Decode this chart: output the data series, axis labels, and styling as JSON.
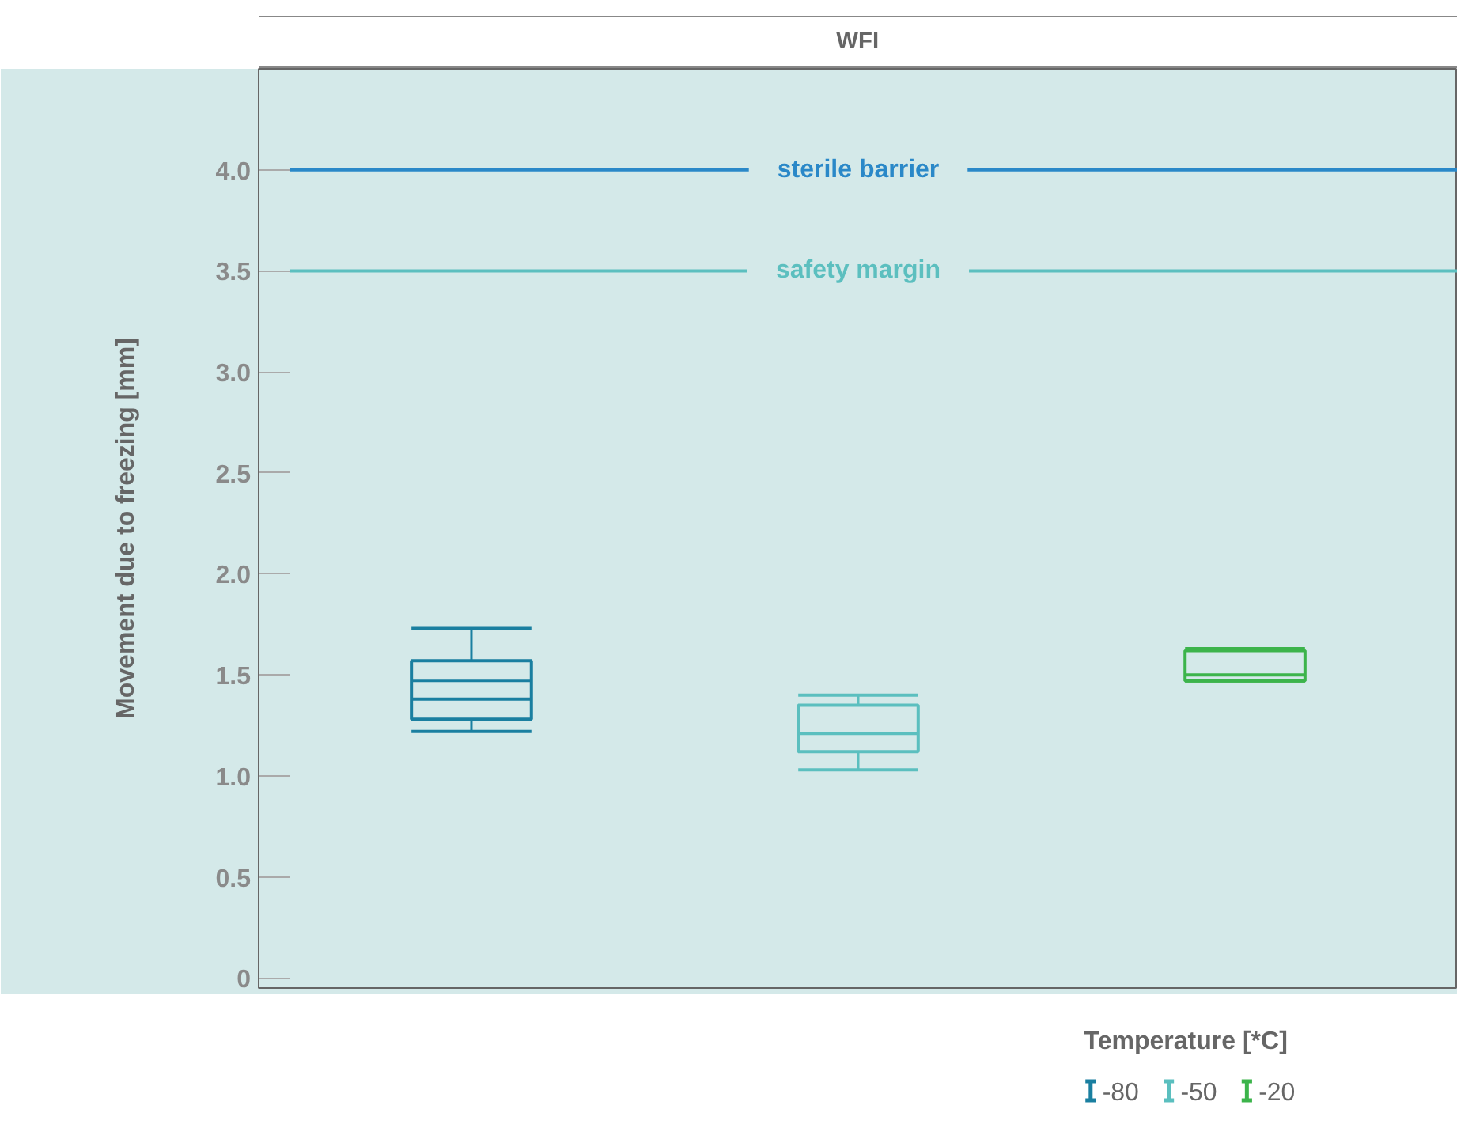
{
  "chart_data": {
    "type": "box",
    "title": "WFI",
    "ylabel": "Movement due to freezing [mm]",
    "legend_title": "Temperature [*C]",
    "categories": [
      null,
      null,
      null
    ],
    "ylim": [
      -0.05,
      4.5
    ],
    "yticks": [
      0,
      0.5,
      {
        "value": 1,
        "label": "1.0"
      },
      1.5,
      {
        "value": 2,
        "label": "2.0"
      },
      2.5,
      {
        "value": 3,
        "label": "3.0"
      },
      3.5,
      {
        "value": 4,
        "label": "4.0"
      }
    ],
    "series": [
      {
        "name": "-80",
        "color": "#1a7fa0",
        "boxes": [
          {
            "low": 1.22,
            "q1": 1.28,
            "median": 1.38,
            "q3": 1.57,
            "high": 1.73,
            "mean": 1.47
          },
          null,
          null
        ]
      },
      {
        "name": "-50",
        "color": "#5bbfbf",
        "boxes": [
          null,
          {
            "low": 1.03,
            "q1": 1.12,
            "median": 1.21,
            "q3": 1.35,
            "high": 1.4
          },
          null
        ]
      },
      {
        "name": "-20",
        "color": "#3cb44b",
        "boxes": [
          null,
          null,
          {
            "low": 1.47,
            "q1": 1.47,
            "median": 1.5,
            "q3": 1.62,
            "high": 1.63
          }
        ]
      }
    ],
    "ref_lines": [
      {
        "axis": "y",
        "value": 4.0,
        "label": "sterile barrier",
        "color": "#2a88c8"
      },
      {
        "axis": "y",
        "value": 3.5,
        "label": "safety margin",
        "color": "#5cbfbf"
      }
    ],
    "grid": false,
    "legend": "bottom",
    "tick_labels": "y"
  }
}
